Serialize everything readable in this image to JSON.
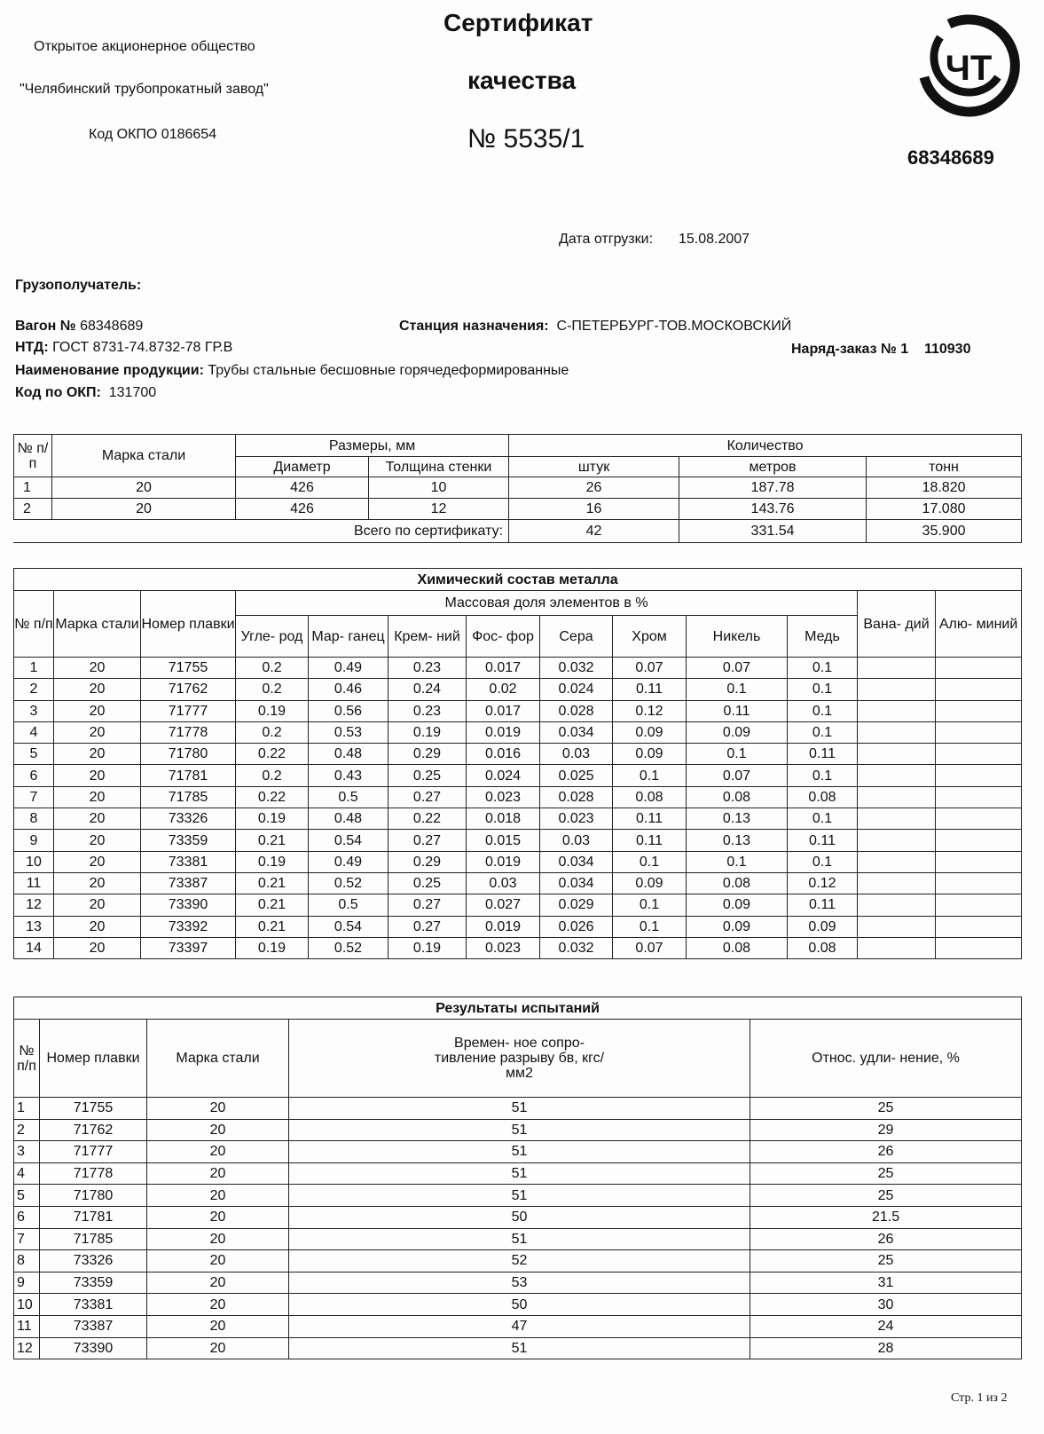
{
  "header": {
    "org_line1": "Открытое акционерное общество",
    "org_line2": "\"Челябинский трубопрокатный завод\"",
    "okpo": "Код ОКПО 0186654",
    "title1": "Сертификат",
    "title2": "качества",
    "number": "№ 5535/1",
    "logo_text": "ЧТ",
    "code_right": "68348689"
  },
  "shipment": {
    "date_label": "Дата отгрузки:",
    "date": "15.08.2007",
    "consignee_label": "Грузополучатель:",
    "wagon_label": "Вагон №",
    "wagon": "68348689",
    "station_label": "Станция назначения:",
    "station": "С-ПЕТЕРБУРГ-ТОВ.МОСКОВСКИЙ",
    "ntd_label": "НТД:",
    "ntd": "ГОСТ 8731-74.8732-78 ГР.В",
    "order_label": "Наряд-заказ №",
    "order_n": "1",
    "order_code": "110930",
    "product_label": "Наименование продукции:",
    "product": "Трубы стальные бесшовные горячедеформированные",
    "okp_label": "Код по ОКП:",
    "okp": "131700"
  },
  "products": {
    "headers": {
      "no": "№ п/п",
      "grade": "Марка стали",
      "sizes": "Размеры, мм",
      "diameter": "Диаметр",
      "wall": "Толщина стенки",
      "qty": "Количество",
      "pcs": "штук",
      "meters": "метров",
      "tons": "тонн"
    },
    "rows": [
      [
        "1",
        "20",
        "426",
        "10",
        "26",
        "187.78",
        "18.820"
      ],
      [
        "2",
        "20",
        "426",
        "12",
        "16",
        "143.76",
        "17.080"
      ]
    ],
    "total_label": "Всего по сертификату:",
    "total": [
      "42",
      "331.54",
      "35.900"
    ]
  },
  "chemistry": {
    "title": "Химический состав металла",
    "mass_label": "Массовая доля элементов в %",
    "headers": [
      "№ п/п",
      "Марка стали",
      "Номер плавки",
      "Угле- род",
      "Мар- ганец",
      "Крем- ний",
      "Фос- фор",
      "Сера",
      "Хром",
      "Никель",
      "Медь",
      "Вана- дий",
      "Алю- миний"
    ],
    "rows": [
      [
        "1",
        "20",
        "71755",
        "0.2",
        "0.49",
        "0.23",
        "0.017",
        "0.032",
        "0.07",
        "0.07",
        "0.1",
        "",
        ""
      ],
      [
        "2",
        "20",
        "71762",
        "0.2",
        "0.46",
        "0.24",
        "0.02",
        "0.024",
        "0.11",
        "0.1",
        "0.1",
        "",
        ""
      ],
      [
        "3",
        "20",
        "71777",
        "0.19",
        "0.56",
        "0.23",
        "0.017",
        "0.028",
        "0.12",
        "0.11",
        "0.1",
        "",
        ""
      ],
      [
        "4",
        "20",
        "71778",
        "0.2",
        "0.53",
        "0.19",
        "0.019",
        "0.034",
        "0.09",
        "0.09",
        "0.1",
        "",
        ""
      ],
      [
        "5",
        "20",
        "71780",
        "0.22",
        "0.48",
        "0.29",
        "0.016",
        "0.03",
        "0.09",
        "0.1",
        "0.11",
        "",
        ""
      ],
      [
        "6",
        "20",
        "71781",
        "0.2",
        "0.43",
        "0.25",
        "0.024",
        "0.025",
        "0.1",
        "0.07",
        "0.1",
        "",
        ""
      ],
      [
        "7",
        "20",
        "71785",
        "0.22",
        "0.5",
        "0.27",
        "0.023",
        "0.028",
        "0.08",
        "0.08",
        "0.08",
        "",
        ""
      ],
      [
        "8",
        "20",
        "73326",
        "0.19",
        "0.48",
        "0.22",
        "0.018",
        "0.023",
        "0.11",
        "0.13",
        "0.1",
        "",
        ""
      ],
      [
        "9",
        "20",
        "73359",
        "0.21",
        "0.54",
        "0.27",
        "0.015",
        "0.03",
        "0.11",
        "0.13",
        "0.11",
        "",
        ""
      ],
      [
        "10",
        "20",
        "73381",
        "0.19",
        "0.49",
        "0.29",
        "0.019",
        "0.034",
        "0.1",
        "0.1",
        "0.1",
        "",
        ""
      ],
      [
        "11",
        "20",
        "73387",
        "0.21",
        "0.52",
        "0.25",
        "0.03",
        "0.034",
        "0.09",
        "0.08",
        "0.12",
        "",
        ""
      ],
      [
        "12",
        "20",
        "73390",
        "0.21",
        "0.5",
        "0.27",
        "0.027",
        "0.029",
        "0.1",
        "0.09",
        "0.11",
        "",
        ""
      ],
      [
        "13",
        "20",
        "73392",
        "0.21",
        "0.54",
        "0.27",
        "0.019",
        "0.026",
        "0.1",
        "0.09",
        "0.09",
        "",
        ""
      ],
      [
        "14",
        "20",
        "73397",
        "0.19",
        "0.52",
        "0.19",
        "0.023",
        "0.032",
        "0.07",
        "0.08",
        "0.08",
        "",
        ""
      ]
    ]
  },
  "tests": {
    "title": "Результаты испытаний",
    "headers": [
      "№ п/п",
      "Номер плавки",
      "Марка стали",
      "Времен- ное сопро- тивление разрыву бв, кгс/мм2",
      "Относ. удли- нение, %"
    ],
    "rows": [
      [
        "1",
        "71755",
        "20",
        "51",
        "25"
      ],
      [
        "2",
        "71762",
        "20",
        "51",
        "29"
      ],
      [
        "3",
        "71777",
        "20",
        "51",
        "26"
      ],
      [
        "4",
        "71778",
        "20",
        "51",
        "25"
      ],
      [
        "5",
        "71780",
        "20",
        "51",
        "25"
      ],
      [
        "6",
        "71781",
        "20",
        "50",
        "21.5"
      ],
      [
        "7",
        "71785",
        "20",
        "51",
        "26"
      ],
      [
        "8",
        "73326",
        "20",
        "52",
        "25"
      ],
      [
        "9",
        "73359",
        "20",
        "53",
        "31"
      ],
      [
        "10",
        "73381",
        "20",
        "50",
        "30"
      ],
      [
        "11",
        "73387",
        "20",
        "47",
        "24"
      ],
      [
        "12",
        "73390",
        "20",
        "51",
        "28"
      ]
    ]
  },
  "footer": {
    "page": "Стр. 1 из 2"
  }
}
